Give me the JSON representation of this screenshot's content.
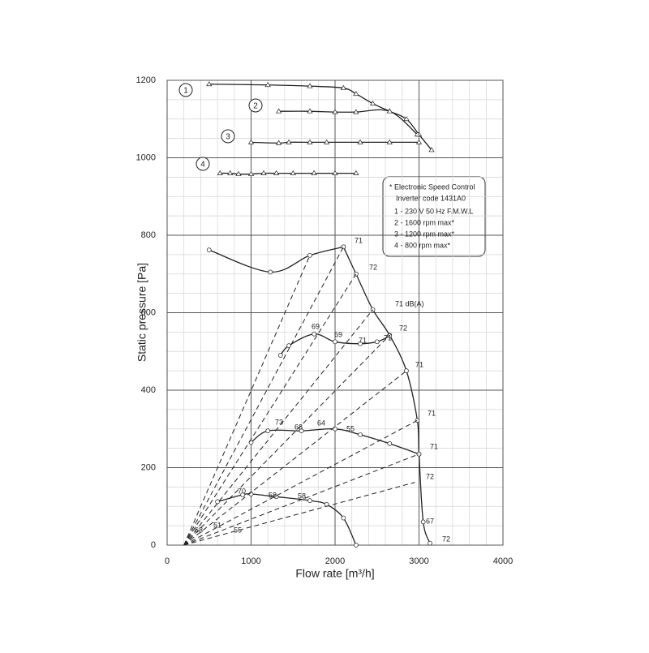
{
  "chart_data": {
    "type": "line",
    "y_label": "Static pressure [Pa]",
    "x_label": "Flow rate [m³/h]",
    "xlim": [
      0,
      4000
    ],
    "xticks": [
      0,
      1000,
      2000,
      3000,
      4000
    ],
    "ylim": [
      0,
      1200
    ],
    "yticks": [
      0,
      200,
      400,
      600,
      800,
      1000,
      1200
    ],
    "grid": true,
    "series": [
      {
        "color": "#222222",
        "style": "solid",
        "marker": "triangle",
        "x": [
          500,
          1200,
          1700,
          2100,
          2250,
          2450,
          2650,
          2850,
          3000,
          3150
        ],
        "values": [
          1190,
          1188,
          1185,
          1180,
          1165,
          1140,
          1120,
          1100,
          1060,
          1020
        ]
      },
      {
        "color": "#222222",
        "style": "solid",
        "marker": "triangle",
        "x": [
          1330,
          1700,
          2000,
          2250,
          2650,
          2980
        ],
        "values": [
          1120,
          1120,
          1118,
          1118,
          1120,
          1060
        ]
      },
      {
        "color": "#222222",
        "style": "solid",
        "marker": "triangle",
        "x": [
          1000,
          1330,
          1450,
          1700,
          1900,
          2300,
          2650,
          3000
        ],
        "values": [
          1040,
          1038,
          1040,
          1040,
          1040,
          1040,
          1040,
          1040
        ]
      },
      {
        "color": "#222222",
        "style": "solid",
        "marker": "triangle",
        "x": [
          630,
          750,
          850,
          1000,
          1150,
          1300,
          1500,
          1750,
          2000,
          2250
        ],
        "values": [
          960,
          960,
          958,
          958,
          960,
          960,
          960,
          960,
          960,
          960
        ]
      },
      {
        "color": "#222222",
        "style": "solid",
        "marker": "circle",
        "x": [
          500,
          1230,
          1700,
          2100
        ],
        "values": [
          762,
          705,
          748,
          770
        ]
      },
      {
        "color": "#222222",
        "style": "solid",
        "marker": "circle",
        "x": [
          2100,
          2250,
          2450,
          2650,
          2850,
          2980,
          3000,
          3050,
          3130
        ],
        "values": [
          770,
          700,
          608,
          542,
          450,
          322,
          235,
          60,
          5
        ]
      },
      {
        "color": "#222222",
        "style": "solid",
        "marker": "circle",
        "x": [
          1350,
          1450,
          1750,
          2000,
          2300,
          2500,
          2650
        ],
        "values": [
          490,
          515,
          545,
          525,
          520,
          525,
          540
        ]
      },
      {
        "color": "#222222",
        "style": "solid",
        "marker": "circle",
        "x": [
          1000,
          1200,
          1600,
          2000,
          2300,
          2650,
          3000
        ],
        "values": [
          265,
          295,
          295,
          300,
          285,
          262,
          235
        ]
      },
      {
        "color": "#222222",
        "style": "solid",
        "marker": "circle",
        "x": [
          600,
          900,
          1000,
          1300,
          1700,
          1900,
          2100,
          2250
        ],
        "values": [
          112,
          130,
          132,
          125,
          115,
          105,
          70,
          0
        ]
      },
      {
        "color": "#222222",
        "style": "dashed",
        "marker": "none",
        "x": [
          200,
          1700
        ],
        "values": [
          0,
          748
        ]
      },
      {
        "color": "#222222",
        "style": "dashed",
        "marker": "none",
        "x": [
          200,
          2100
        ],
        "values": [
          0,
          770
        ]
      },
      {
        "color": "#222222",
        "style": "dashed",
        "marker": "none",
        "x": [
          200,
          2250
        ],
        "values": [
          0,
          700
        ]
      },
      {
        "color": "#222222",
        "style": "dashed",
        "marker": "none",
        "x": [
          200,
          2450
        ],
        "values": [
          0,
          608
        ]
      },
      {
        "color": "#222222",
        "style": "dashed",
        "marker": "none",
        "x": [
          200,
          2650
        ],
        "values": [
          0,
          542
        ]
      },
      {
        "color": "#222222",
        "style": "dashed",
        "marker": "none",
        "x": [
          200,
          2850
        ],
        "values": [
          0,
          450
        ]
      },
      {
        "color": "#222222",
        "style": "dashed",
        "marker": "none",
        "x": [
          200,
          2980
        ],
        "values": [
          0,
          322
        ]
      },
      {
        "color": "#222222",
        "style": "dashed",
        "marker": "none",
        "x": [
          200,
          3000
        ],
        "values": [
          0,
          235
        ]
      },
      {
        "color": "#222222",
        "style": "dashed",
        "marker": "none",
        "x": [
          200,
          2950
        ],
        "values": [
          0,
          162
        ]
      }
    ],
    "curve_labels": [
      "1",
      "2",
      "3",
      "4"
    ],
    "annotations": [
      "71",
      "72",
      "71 dB(A)",
      "69",
      "69",
      "71",
      "71",
      "72",
      "71",
      "71",
      "71",
      "72",
      "67",
      "72",
      "73",
      "68",
      "64",
      "55",
      "70",
      "58",
      "58",
      "68",
      "51",
      "55"
    ],
    "legend_box": [
      "* Electronic Speed Control",
      "Inverter code 1431A0",
      "1 - 230 V 50 Hz   F.M.W.L",
      "2 - 1600 rpm max*",
      "3 - 1200 rpm max*",
      "4 - 800 rpm max*"
    ]
  }
}
